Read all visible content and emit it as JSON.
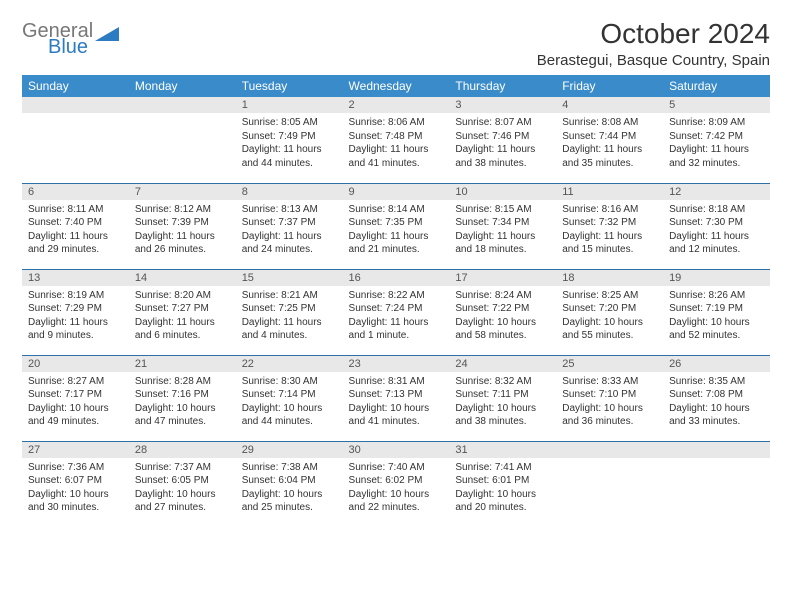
{
  "logo": {
    "top": "General",
    "bottom": "Blue",
    "top_color": "#777777",
    "bottom_color": "#2d7bc0"
  },
  "title": "October 2024",
  "location": "Berastegui, Basque Country, Spain",
  "header_bg": "#3a8bc9",
  "header_fg": "#ffffff",
  "daynum_bg": "#e8e8e8",
  "border_color": "#2d6fa8",
  "day_names": [
    "Sunday",
    "Monday",
    "Tuesday",
    "Wednesday",
    "Thursday",
    "Friday",
    "Saturday"
  ],
  "weeks": [
    [
      {
        "n": "",
        "sr": "",
        "ss": "",
        "dl": ""
      },
      {
        "n": "",
        "sr": "",
        "ss": "",
        "dl": ""
      },
      {
        "n": "1",
        "sr": "Sunrise: 8:05 AM",
        "ss": "Sunset: 7:49 PM",
        "dl": "Daylight: 11 hours and 44 minutes."
      },
      {
        "n": "2",
        "sr": "Sunrise: 8:06 AM",
        "ss": "Sunset: 7:48 PM",
        "dl": "Daylight: 11 hours and 41 minutes."
      },
      {
        "n": "3",
        "sr": "Sunrise: 8:07 AM",
        "ss": "Sunset: 7:46 PM",
        "dl": "Daylight: 11 hours and 38 minutes."
      },
      {
        "n": "4",
        "sr": "Sunrise: 8:08 AM",
        "ss": "Sunset: 7:44 PM",
        "dl": "Daylight: 11 hours and 35 minutes."
      },
      {
        "n": "5",
        "sr": "Sunrise: 8:09 AM",
        "ss": "Sunset: 7:42 PM",
        "dl": "Daylight: 11 hours and 32 minutes."
      }
    ],
    [
      {
        "n": "6",
        "sr": "Sunrise: 8:11 AM",
        "ss": "Sunset: 7:40 PM",
        "dl": "Daylight: 11 hours and 29 minutes."
      },
      {
        "n": "7",
        "sr": "Sunrise: 8:12 AM",
        "ss": "Sunset: 7:39 PM",
        "dl": "Daylight: 11 hours and 26 minutes."
      },
      {
        "n": "8",
        "sr": "Sunrise: 8:13 AM",
        "ss": "Sunset: 7:37 PM",
        "dl": "Daylight: 11 hours and 24 minutes."
      },
      {
        "n": "9",
        "sr": "Sunrise: 8:14 AM",
        "ss": "Sunset: 7:35 PM",
        "dl": "Daylight: 11 hours and 21 minutes."
      },
      {
        "n": "10",
        "sr": "Sunrise: 8:15 AM",
        "ss": "Sunset: 7:34 PM",
        "dl": "Daylight: 11 hours and 18 minutes."
      },
      {
        "n": "11",
        "sr": "Sunrise: 8:16 AM",
        "ss": "Sunset: 7:32 PM",
        "dl": "Daylight: 11 hours and 15 minutes."
      },
      {
        "n": "12",
        "sr": "Sunrise: 8:18 AM",
        "ss": "Sunset: 7:30 PM",
        "dl": "Daylight: 11 hours and 12 minutes."
      }
    ],
    [
      {
        "n": "13",
        "sr": "Sunrise: 8:19 AM",
        "ss": "Sunset: 7:29 PM",
        "dl": "Daylight: 11 hours and 9 minutes."
      },
      {
        "n": "14",
        "sr": "Sunrise: 8:20 AM",
        "ss": "Sunset: 7:27 PM",
        "dl": "Daylight: 11 hours and 6 minutes."
      },
      {
        "n": "15",
        "sr": "Sunrise: 8:21 AM",
        "ss": "Sunset: 7:25 PM",
        "dl": "Daylight: 11 hours and 4 minutes."
      },
      {
        "n": "16",
        "sr": "Sunrise: 8:22 AM",
        "ss": "Sunset: 7:24 PM",
        "dl": "Daylight: 11 hours and 1 minute."
      },
      {
        "n": "17",
        "sr": "Sunrise: 8:24 AM",
        "ss": "Sunset: 7:22 PM",
        "dl": "Daylight: 10 hours and 58 minutes."
      },
      {
        "n": "18",
        "sr": "Sunrise: 8:25 AM",
        "ss": "Sunset: 7:20 PM",
        "dl": "Daylight: 10 hours and 55 minutes."
      },
      {
        "n": "19",
        "sr": "Sunrise: 8:26 AM",
        "ss": "Sunset: 7:19 PM",
        "dl": "Daylight: 10 hours and 52 minutes."
      }
    ],
    [
      {
        "n": "20",
        "sr": "Sunrise: 8:27 AM",
        "ss": "Sunset: 7:17 PM",
        "dl": "Daylight: 10 hours and 49 minutes."
      },
      {
        "n": "21",
        "sr": "Sunrise: 8:28 AM",
        "ss": "Sunset: 7:16 PM",
        "dl": "Daylight: 10 hours and 47 minutes."
      },
      {
        "n": "22",
        "sr": "Sunrise: 8:30 AM",
        "ss": "Sunset: 7:14 PM",
        "dl": "Daylight: 10 hours and 44 minutes."
      },
      {
        "n": "23",
        "sr": "Sunrise: 8:31 AM",
        "ss": "Sunset: 7:13 PM",
        "dl": "Daylight: 10 hours and 41 minutes."
      },
      {
        "n": "24",
        "sr": "Sunrise: 8:32 AM",
        "ss": "Sunset: 7:11 PM",
        "dl": "Daylight: 10 hours and 38 minutes."
      },
      {
        "n": "25",
        "sr": "Sunrise: 8:33 AM",
        "ss": "Sunset: 7:10 PM",
        "dl": "Daylight: 10 hours and 36 minutes."
      },
      {
        "n": "26",
        "sr": "Sunrise: 8:35 AM",
        "ss": "Sunset: 7:08 PM",
        "dl": "Daylight: 10 hours and 33 minutes."
      }
    ],
    [
      {
        "n": "27",
        "sr": "Sunrise: 7:36 AM",
        "ss": "Sunset: 6:07 PM",
        "dl": "Daylight: 10 hours and 30 minutes."
      },
      {
        "n": "28",
        "sr": "Sunrise: 7:37 AM",
        "ss": "Sunset: 6:05 PM",
        "dl": "Daylight: 10 hours and 27 minutes."
      },
      {
        "n": "29",
        "sr": "Sunrise: 7:38 AM",
        "ss": "Sunset: 6:04 PM",
        "dl": "Daylight: 10 hours and 25 minutes."
      },
      {
        "n": "30",
        "sr": "Sunrise: 7:40 AM",
        "ss": "Sunset: 6:02 PM",
        "dl": "Daylight: 10 hours and 22 minutes."
      },
      {
        "n": "31",
        "sr": "Sunrise: 7:41 AM",
        "ss": "Sunset: 6:01 PM",
        "dl": "Daylight: 10 hours and 20 minutes."
      },
      {
        "n": "",
        "sr": "",
        "ss": "",
        "dl": ""
      },
      {
        "n": "",
        "sr": "",
        "ss": "",
        "dl": ""
      }
    ]
  ]
}
